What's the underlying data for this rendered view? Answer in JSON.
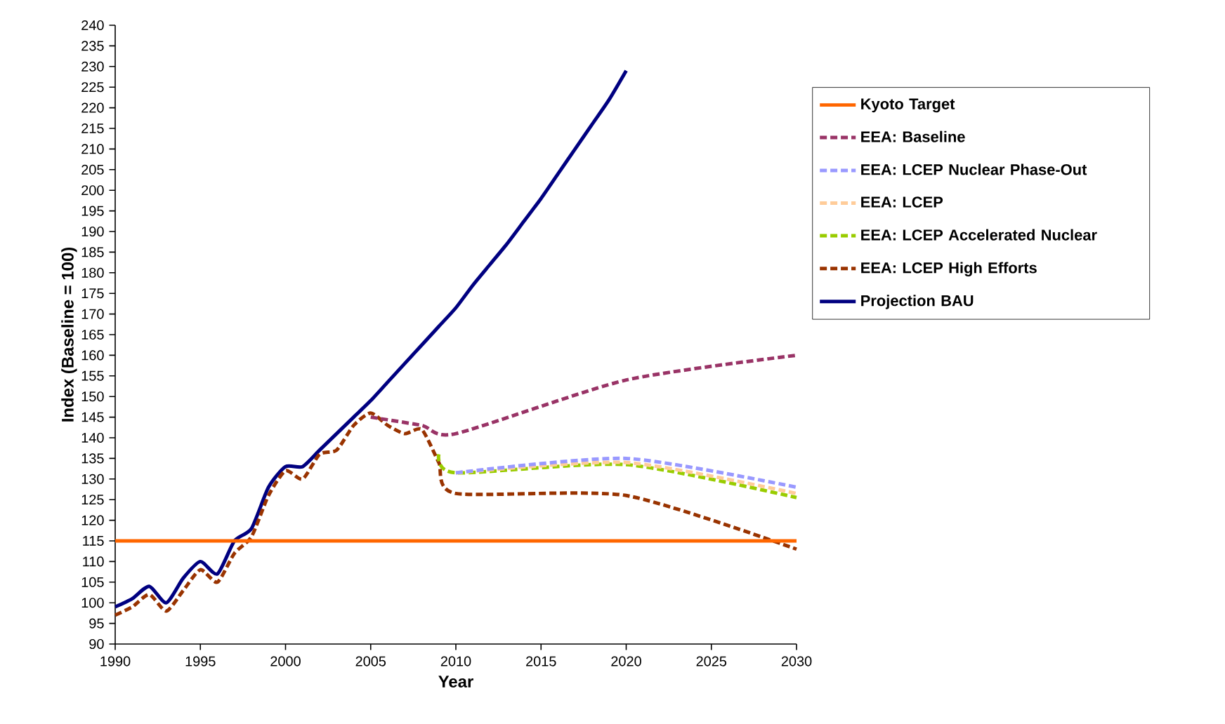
{
  "chart_data": {
    "type": "line",
    "xlabel": "Year",
    "ylabel": "Index (Baseline = 100)",
    "xlim": [
      1990,
      2030
    ],
    "xticks": [
      1990,
      1995,
      2000,
      2005,
      2010,
      2015,
      2020,
      2025,
      2030
    ],
    "ylim": [
      90,
      240
    ],
    "yticks": [
      90,
      95,
      100,
      105,
      110,
      115,
      120,
      125,
      130,
      135,
      140,
      145,
      150,
      155,
      160,
      165,
      170,
      175,
      180,
      185,
      190,
      195,
      200,
      205,
      210,
      215,
      220,
      225,
      230,
      235,
      240
    ],
    "legend": "right",
    "grid": false,
    "marker": "none",
    "series": [
      {
        "name": "Kyoto Target",
        "color": "#ff6600",
        "line_style": "solid",
        "x": [
          1990,
          2030
        ],
        "values": [
          115,
          115
        ]
      },
      {
        "name": "EEA: Baseline",
        "color": "#993366",
        "line_style": "dashed",
        "x": [
          2005,
          2008,
          2010,
          2020,
          2030
        ],
        "values": [
          145,
          143,
          141,
          154,
          160
        ]
      },
      {
        "name": "EEA: LCEP Nuclear Phase-Out",
        "color": "#9999ff",
        "line_style": "dashed",
        "x": [
          2010,
          2020,
          2030
        ],
        "values": [
          131.5,
          135,
          128
        ]
      },
      {
        "name": "EEA: LCEP",
        "color": "#ffcc99",
        "line_style": "dashed",
        "x": [
          2010,
          2020,
          2030
        ],
        "values": [
          131.5,
          134,
          126.5
        ]
      },
      {
        "name": "EEA: LCEP Accelerated Nuclear",
        "color": "#99cc00",
        "line_style": "dashed",
        "x": [
          2009,
          2010,
          2020,
          2030
        ],
        "values": [
          136,
          131.5,
          133.5,
          125.5
        ]
      },
      {
        "name": "EEA: LCEP High Efforts",
        "color": "#993300",
        "line_style": "dashed",
        "x": [
          1990,
          1991,
          1992,
          1993,
          1994,
          1995,
          1996,
          1997,
          1998,
          1999,
          2000,
          2001,
          2002,
          2003,
          2004,
          2005,
          2006,
          2007,
          2008,
          2009,
          2010,
          2020,
          2030
        ],
        "values": [
          97,
          99,
          102,
          98,
          103,
          108,
          105,
          112,
          116,
          126,
          132,
          130,
          136,
          137,
          143,
          146,
          143,
          141,
          142,
          134,
          126.5,
          126,
          113
        ]
      },
      {
        "name": "Projection BAU",
        "color": "#000080",
        "line_style": "solid",
        "x": [
          1990,
          1991,
          1992,
          1993,
          1994,
          1995,
          1996,
          1997,
          1998,
          1999,
          2000,
          2001,
          2002,
          2003,
          2004,
          2005,
          2006,
          2007,
          2008,
          2009,
          2010,
          2011,
          2012,
          2013,
          2014,
          2015,
          2016,
          2017,
          2018,
          2019,
          2020
        ],
        "values": [
          99,
          101,
          104,
          100,
          106,
          110,
          107,
          115,
          118,
          128,
          133,
          133,
          137,
          141,
          145,
          149,
          153.5,
          158,
          162.5,
          167,
          171.5,
          177,
          182,
          187,
          192.5,
          198,
          204,
          210,
          216,
          222,
          229
        ]
      }
    ]
  }
}
